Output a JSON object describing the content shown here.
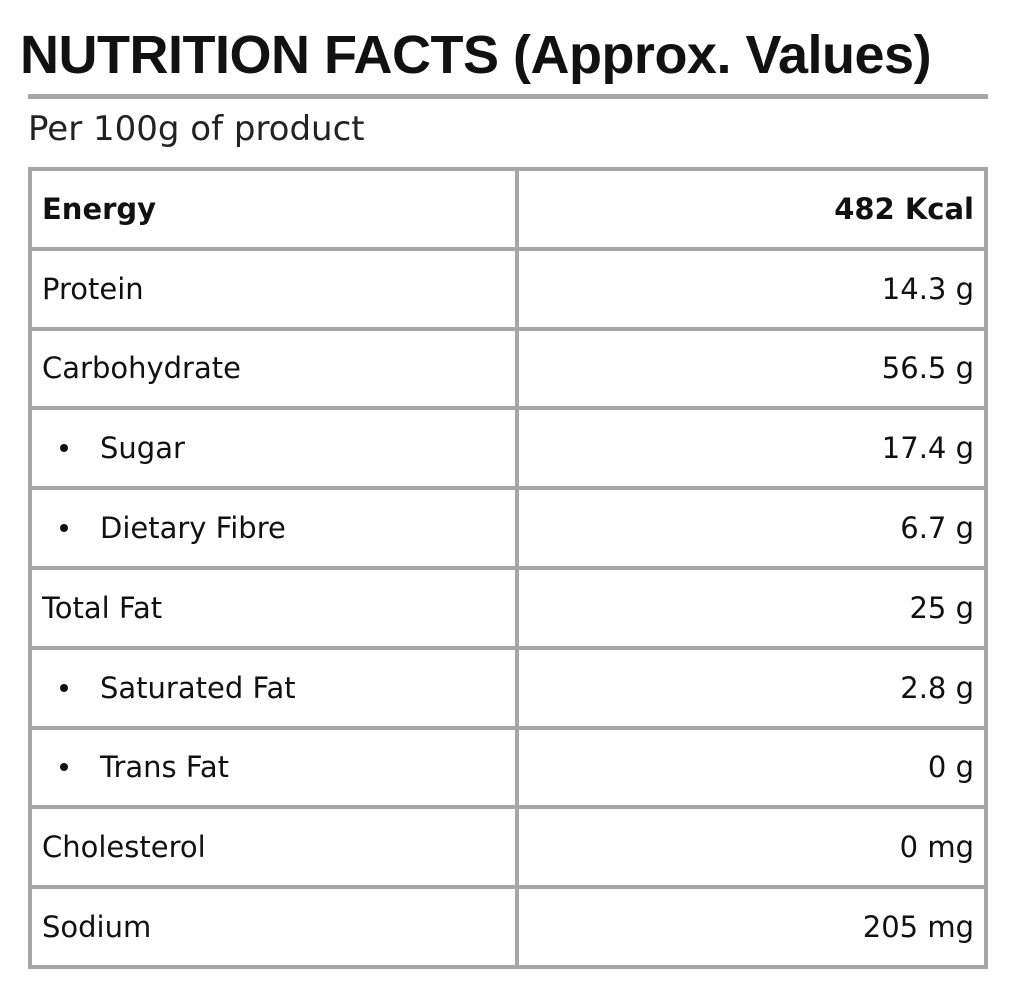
{
  "title": "NUTRITION FACTS (Approx. Values)",
  "subtitle": "Per 100g of product",
  "rows": [
    {
      "label": "Energy",
      "value": "482 Kcal"
    },
    {
      "label": "Protein",
      "value": "14.3 g"
    },
    {
      "label": "Carbohydrate",
      "value": "56.5 g"
    },
    {
      "label": "Sugar",
      "value": "17.4 g"
    },
    {
      "label": "Dietary Fibre",
      "value": "6.7 g"
    },
    {
      "label": "Total Fat",
      "value": "25 g"
    },
    {
      "label": "Saturated Fat",
      "value": "2.8 g"
    },
    {
      "label": "Trans Fat",
      "value": "0 g"
    },
    {
      "label": "Cholesterol",
      "value": "0 mg"
    },
    {
      "label": "Sodium",
      "value": "205 mg"
    }
  ],
  "colors": {
    "border": "#a6a6a6",
    "text": "#111111",
    "background": "#ffffff"
  }
}
